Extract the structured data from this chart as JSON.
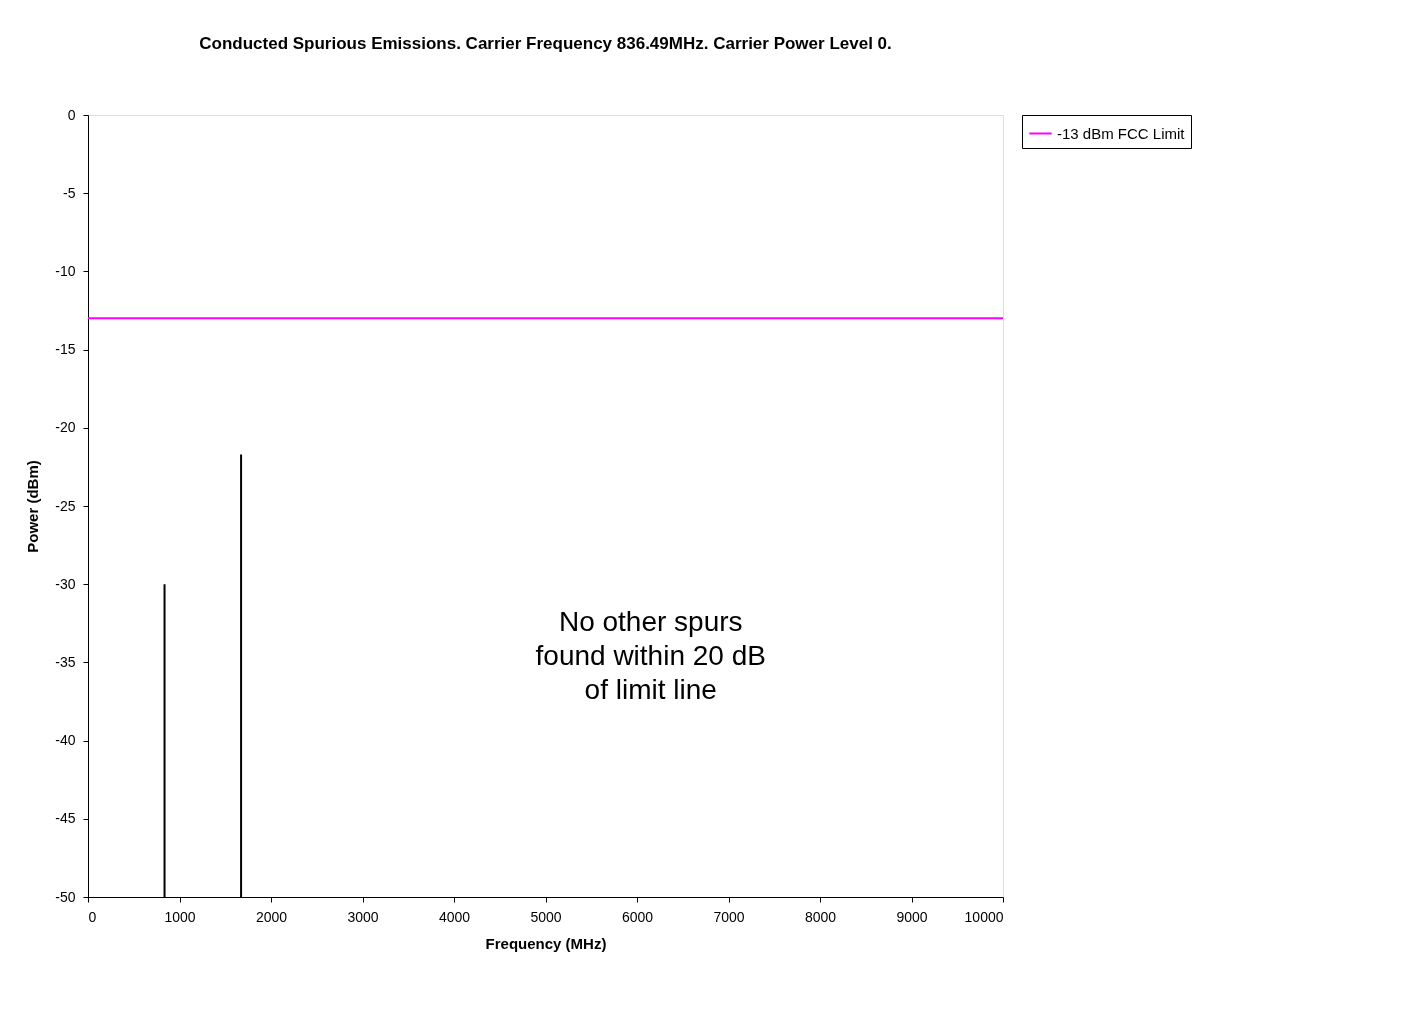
{
  "chart_data": {
    "type": "line",
    "title": "Conducted Spurious Emissions. Carrier Frequency 836.49MHz. Carrier Power Level 0.",
    "xlabel": "Frequency (MHz)",
    "ylabel": "Power (dBm)",
    "xlim": [
      0,
      10000
    ],
    "xticks": [
      0,
      1000,
      2000,
      3000,
      4000,
      5000,
      6000,
      7000,
      8000,
      9000,
      10000
    ],
    "ylim": [
      -50,
      0
    ],
    "yticks": [
      -50,
      -45,
      -40,
      -35,
      -30,
      -25,
      -20,
      -15,
      -10,
      -5,
      0
    ],
    "series": [
      {
        "color": "#000000",
        "x": [
          836.49,
          836.49
        ],
        "values": [
          -50,
          -30
        ]
      },
      {
        "color": "#000000",
        "x": [
          1672.98,
          1672.98
        ],
        "values": [
          -50,
          -21.7
        ]
      },
      {
        "name": "-13 dBm FCC Limit",
        "color": "#ff00ff",
        "x": [
          0,
          10000
        ],
        "values": [
          -13,
          -13
        ]
      }
    ],
    "annotations": [
      "No other spurs\nfound within 20 dB\nof limit line"
    ],
    "grid": false,
    "legend": "right",
    "marker": "none",
    "line_style": "solid"
  }
}
